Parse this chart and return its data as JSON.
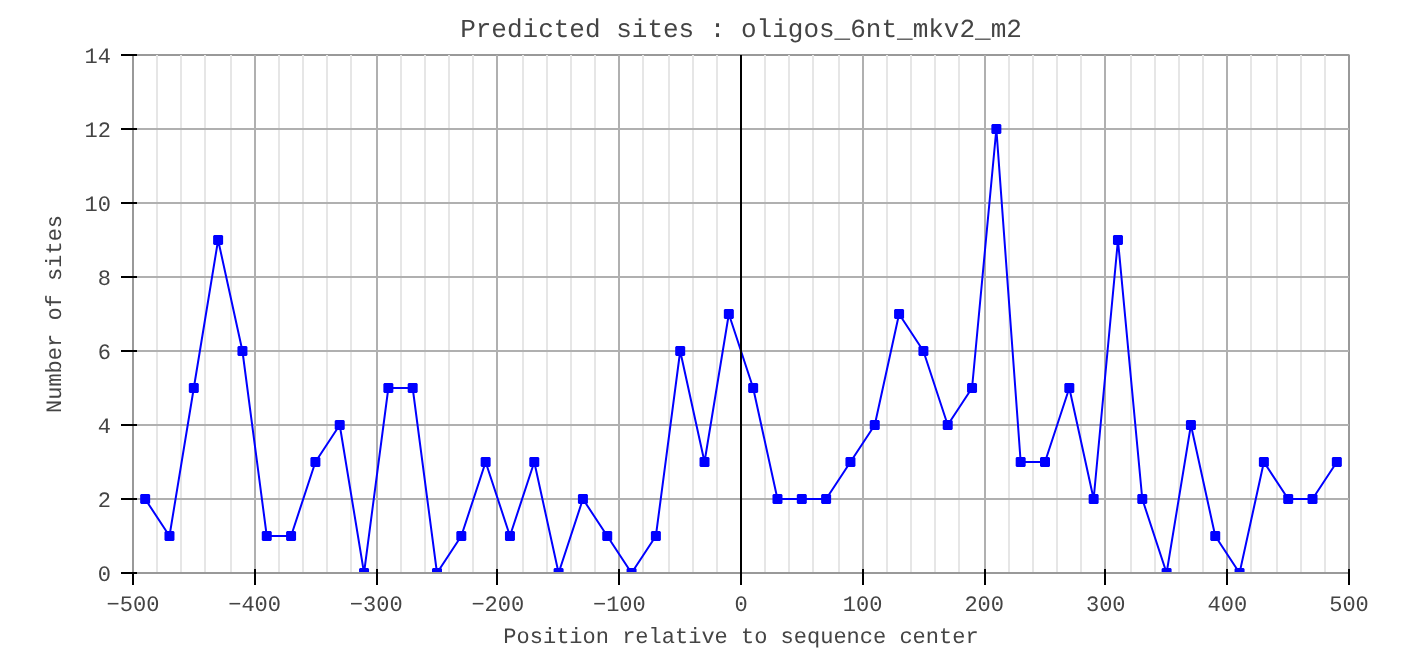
{
  "chart_data": {
    "type": "line",
    "title": "Predicted sites : oligos_6nt_mkv2_m2",
    "xlabel": "Position relative to sequence center",
    "ylabel": "Number of sites",
    "x": [
      -490,
      -470,
      -450,
      -430,
      -410,
      -390,
      -370,
      -350,
      -330,
      -310,
      -290,
      -270,
      -250,
      -230,
      -210,
      -190,
      -170,
      -150,
      -130,
      -110,
      -90,
      -70,
      -50,
      -30,
      -10,
      10,
      30,
      50,
      70,
      90,
      110,
      130,
      150,
      170,
      190,
      210,
      230,
      250,
      270,
      290,
      310,
      330,
      350,
      370,
      390,
      410,
      430,
      450,
      470,
      490
    ],
    "series": [
      {
        "color": "#0000ff",
        "values": [
          2,
          1,
          5,
          9,
          6,
          1,
          1,
          3,
          4,
          0,
          5,
          5,
          0,
          1,
          3,
          1,
          3,
          0,
          2,
          1,
          0,
          1,
          6,
          3,
          7,
          5,
          2,
          2,
          2,
          3,
          4,
          7,
          6,
          4,
          5,
          12,
          3,
          3,
          5,
          2,
          9,
          2,
          0,
          4,
          1,
          0,
          3,
          2,
          2,
          3
        ]
      }
    ],
    "xlim": [
      -500,
      500
    ],
    "ylim": [
      0,
      14
    ],
    "xticks": [
      -500,
      -400,
      -300,
      -200,
      -100,
      0,
      100,
      200,
      300,
      400,
      500
    ],
    "yticks": [
      0,
      2,
      4,
      6,
      8,
      10,
      12,
      14
    ],
    "ref_lines": [
      {
        "axis": "x",
        "value": 0,
        "color": "#000000"
      }
    ],
    "grid": true,
    "marker": "square",
    "line_style": "solid"
  }
}
